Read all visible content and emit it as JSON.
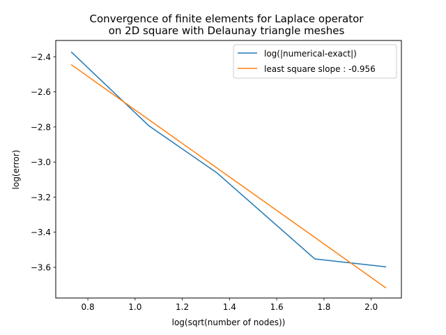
{
  "chart_data": {
    "type": "line",
    "title_lines": [
      "Convergence of finite elements for Laplace operator",
      "on 2D square with Delaunay triangle meshes"
    ],
    "xlabel": "log(sqrt(number of nodes))",
    "ylabel": "log(error)",
    "xlim": [
      0.664,
      2.128
    ],
    "ylim": [
      -3.775,
      -2.307
    ],
    "xticks": [
      0.8,
      1.0,
      1.2,
      1.4,
      1.6,
      1.8,
      2.0
    ],
    "xtick_labels": [
      "0.8",
      "1.0",
      "1.2",
      "1.4",
      "1.6",
      "1.8",
      "2.0"
    ],
    "yticks": [
      -2.4,
      -2.6,
      -2.8,
      -3.0,
      -3.2,
      -3.4,
      -3.6
    ],
    "ytick_labels": [
      "−2.4",
      "−2.6",
      "−2.8",
      "−3.0",
      "−3.2",
      "−3.4",
      "−3.6"
    ],
    "legend_position": "top-right",
    "grid": false,
    "series": [
      {
        "name": "log(|numerical-exact|)",
        "color": "#1f77b4",
        "x": [
          0.731,
          1.059,
          1.347,
          1.761,
          2.061
        ],
        "y": [
          -2.374,
          -2.794,
          -3.062,
          -3.552,
          -3.597
        ]
      },
      {
        "name": "least square slope : -0.956",
        "color": "#ff7f0e",
        "x": [
          0.731,
          2.061
        ],
        "y": [
          -2.446,
          -3.716
        ]
      }
    ]
  }
}
